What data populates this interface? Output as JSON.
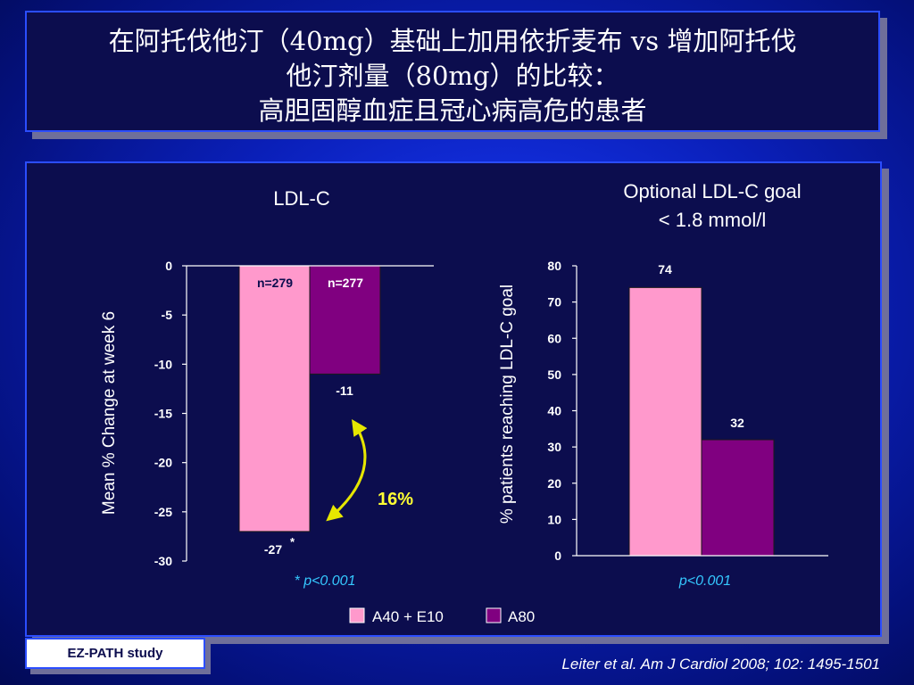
{
  "slide": {
    "title_lines": [
      "在阿托伐他汀（40mg）基础上加用依折麦布 vs 增加阿托伐",
      "他汀剂量（80mg）的比较：",
      "高胆固醇血症且冠心病高危的患者"
    ],
    "study_label": "EZ-PATH study",
    "citation": "Leiter et al. Am J Cardiol 2008; 102: 1495-1501"
  },
  "colors": {
    "a40e10": "#ff99cc",
    "a80": "#800080",
    "panel": "#0c0d4e",
    "pvalue": "#35c8ff",
    "annotation": "#ffff33",
    "arrow": "#e6e600"
  },
  "legend": [
    {
      "label": "A40 + E10",
      "color": "#ff99cc"
    },
    {
      "label": "A80",
      "color": "#800080"
    }
  ],
  "chart_data": [
    {
      "type": "bar",
      "title": "LDL-C",
      "ylabel": "Mean % Change at week 6",
      "ylim": [
        -30,
        0
      ],
      "yticks": [
        0,
        -5,
        -10,
        -15,
        -20,
        -25,
        -30
      ],
      "categories": [
        "A40 + E10",
        "A80"
      ],
      "values": [
        -27,
        -11
      ],
      "value_labels": [
        "-27",
        "-11"
      ],
      "n_labels": [
        "n=279",
        "n=277"
      ],
      "significance_marker": "*",
      "annotation": "16%",
      "pvalue": "* p<0.001"
    },
    {
      "type": "bar",
      "title_lines": [
        "Optional LDL-C goal",
        "< 1.8 mmol/l"
      ],
      "ylabel": "% patients reaching LDL-C goal",
      "ylim": [
        0,
        80
      ],
      "yticks": [
        80,
        70,
        60,
        50,
        40,
        30,
        20,
        10,
        0
      ],
      "categories": [
        "A40 + E10",
        "A80"
      ],
      "values": [
        74,
        32
      ],
      "value_labels": [
        "74",
        "32"
      ],
      "pvalue": "p<0.001"
    }
  ]
}
